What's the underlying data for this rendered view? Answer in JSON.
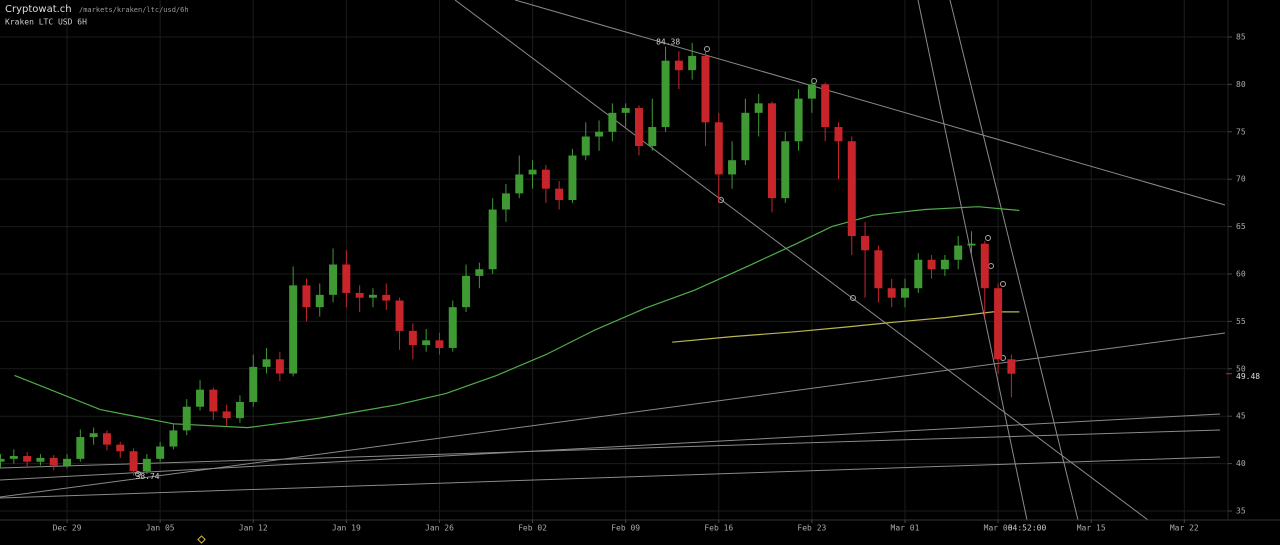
{
  "header": {
    "site": "Cryptowat.ch",
    "path": "/markets/kraken/ltc/usd/6h",
    "market": "Kraken LTC USD 6H",
    "time_label": "04:52:00"
  },
  "chart_data": {
    "type": "candlestick",
    "up_color": "#3f9a34",
    "down_color": "#c8252b",
    "grid": true,
    "xlim": [
      -5.04,
      87.06
    ],
    "ylim": [
      34.05,
      88.9
    ],
    "xticks": [
      {
        "value": 0,
        "label": "Dec 29"
      },
      {
        "value": 7,
        "label": "Jan 05"
      },
      {
        "value": 14,
        "label": "Jan 12"
      },
      {
        "value": 21,
        "label": "Jan 19"
      },
      {
        "value": 28,
        "label": "Jan 26"
      },
      {
        "value": 35,
        "label": "Feb 02"
      },
      {
        "value": 42,
        "label": "Feb 09"
      },
      {
        "value": 49,
        "label": "Feb 16"
      },
      {
        "value": 56,
        "label": "Feb 23"
      },
      {
        "value": 63,
        "label": "Mar 01"
      },
      {
        "value": 70,
        "label": "Mar 08"
      },
      {
        "value": 77,
        "label": "Mar 15"
      },
      {
        "value": 84,
        "label": "Mar 22"
      }
    ],
    "yticks": [
      35,
      40,
      45,
      50,
      55,
      60,
      65,
      70,
      75,
      80,
      85
    ],
    "x": [
      -5,
      -4,
      -3,
      -2,
      -1,
      0,
      1,
      2,
      3,
      4,
      5,
      6,
      7,
      8,
      9,
      10,
      11,
      12,
      13,
      14,
      15,
      16,
      17,
      18,
      19,
      20,
      21,
      22,
      23,
      24,
      25,
      26,
      27,
      28,
      29,
      30,
      31,
      32,
      33,
      34,
      35,
      36,
      37,
      38,
      39,
      40,
      41,
      42,
      43,
      44,
      45,
      46,
      47,
      48,
      49,
      50,
      51,
      52,
      53,
      54,
      55,
      56,
      57,
      58,
      59,
      60,
      61,
      62,
      63,
      64,
      65,
      66,
      67,
      68,
      69,
      70,
      71
    ],
    "open": [
      40.2,
      40.5,
      40.8,
      40.2,
      40.6,
      39.8,
      40.5,
      42.8,
      43.2,
      42.0,
      41.3,
      39.2,
      40.5,
      41.8,
      43.5,
      46.0,
      47.8,
      45.5,
      44.8,
      46.5,
      50.2,
      51.0,
      49.5,
      58.8,
      56.5,
      57.8,
      61.0,
      58.0,
      57.5,
      57.8,
      57.2,
      54.0,
      52.5,
      53.0,
      52.2,
      56.5,
      59.8,
      60.5,
      66.8,
      68.5,
      70.5,
      71.0,
      69.0,
      67.8,
      72.5,
      74.5,
      75.0,
      77.0,
      77.5,
      73.5,
      75.5,
      82.5,
      81.5,
      83.0,
      76.0,
      70.5,
      72.0,
      77.0,
      78.0,
      68.0,
      74.0,
      78.5,
      80.0,
      75.5,
      74.0,
      64.0,
      62.5,
      58.5,
      57.5,
      58.5,
      61.5,
      60.5,
      61.5,
      63.0,
      63.2,
      58.5,
      51.0
    ],
    "high": [
      41.0,
      41.5,
      41.2,
      41.0,
      40.9,
      41.0,
      43.6,
      43.8,
      43.5,
      42.3,
      41.6,
      41.0,
      42.3,
      44.2,
      46.8,
      48.8,
      48.0,
      46.2,
      47.2,
      51.5,
      52.2,
      51.8,
      60.8,
      59.5,
      59.0,
      62.7,
      62.5,
      58.8,
      58.5,
      59.0,
      57.5,
      54.8,
      54.2,
      53.8,
      57.2,
      61.0,
      61.2,
      68.0,
      69.5,
      72.5,
      72.0,
      71.5,
      69.8,
      73.2,
      76.0,
      76.2,
      78.0,
      78.0,
      77.8,
      78.5,
      84.0,
      83.5,
      84.38,
      83.5,
      77.0,
      74.0,
      78.5,
      79.0,
      78.2,
      75.0,
      79.5,
      80.5,
      80.2,
      76.0,
      74.5,
      65.5,
      63.0,
      59.5,
      59.5,
      62.2,
      62.0,
      62.0,
      64.0,
      64.5,
      63.5,
      59.0,
      51.5
    ],
    "low": [
      39.6,
      40.0,
      39.6,
      39.8,
      39.3,
      39.5,
      40.2,
      42.0,
      41.4,
      40.6,
      38.74,
      38.9,
      40.2,
      41.5,
      43.0,
      45.6,
      44.6,
      44.0,
      44.3,
      46.0,
      49.5,
      48.7,
      49.2,
      55.0,
      55.5,
      57.0,
      56.5,
      56.0,
      56.5,
      56.2,
      52.0,
      51.0,
      51.8,
      51.5,
      51.8,
      56.0,
      58.5,
      60.0,
      65.5,
      68.0,
      69.0,
      67.5,
      66.8,
      67.5,
      72.0,
      73.0,
      74.0,
      75.5,
      72.5,
      73.0,
      75.0,
      79.5,
      80.5,
      73.5,
      67.5,
      69.0,
      71.5,
      74.5,
      66.5,
      67.5,
      73.0,
      77.0,
      74.0,
      70.0,
      62.0,
      57.5,
      57.0,
      56.5,
      56.5,
      58.0,
      59.5,
      59.8,
      60.5,
      62.0,
      55.5,
      49.5,
      47.0
    ],
    "close": [
      40.5,
      40.8,
      40.2,
      40.6,
      39.8,
      40.5,
      42.8,
      43.2,
      42.0,
      41.3,
      39.2,
      40.5,
      41.8,
      43.5,
      46.0,
      47.8,
      45.5,
      44.8,
      46.5,
      50.2,
      51.0,
      49.5,
      58.8,
      56.5,
      57.8,
      61.0,
      58.0,
      57.5,
      57.8,
      57.2,
      54.0,
      52.5,
      53.0,
      52.2,
      56.5,
      59.8,
      60.5,
      66.8,
      68.5,
      70.5,
      71.0,
      69.0,
      67.8,
      72.5,
      74.5,
      75.0,
      77.0,
      77.5,
      73.5,
      75.5,
      82.5,
      81.5,
      83.0,
      76.0,
      70.5,
      72.0,
      77.0,
      78.0,
      68.0,
      74.0,
      78.5,
      80.0,
      75.5,
      74.0,
      64.0,
      62.5,
      58.5,
      57.5,
      58.5,
      61.5,
      60.5,
      61.5,
      63.0,
      63.2,
      58.5,
      51.0,
      49.48
    ],
    "indicators": [
      {
        "color": "#4fae4a",
        "x": [
          -3.95,
          2.5,
          8,
          13.6,
          19,
          24.8,
          28.5,
          32.3,
          36,
          39.7,
          43.5,
          47.2,
          51,
          54.7,
          57.5,
          60.6,
          64.5,
          68.5,
          71.6
        ],
        "values": [
          49.3,
          45.7,
          44.2,
          43.8,
          44.8,
          46.2,
          47.4,
          49.3,
          51.5,
          54.1,
          56.4,
          58.3,
          60.7,
          63.1,
          65.0,
          66.2,
          66.8,
          67.1,
          66.7
        ]
      },
      {
        "color": "#b9b84e",
        "x": [
          45.5,
          50,
          54.7,
          58.5,
          62.1,
          66,
          69.6,
          71.6
        ],
        "values": [
          52.8,
          53.4,
          53.9,
          54.4,
          54.9,
          55.4,
          56.0,
          56.0
        ]
      }
    ]
  }
}
